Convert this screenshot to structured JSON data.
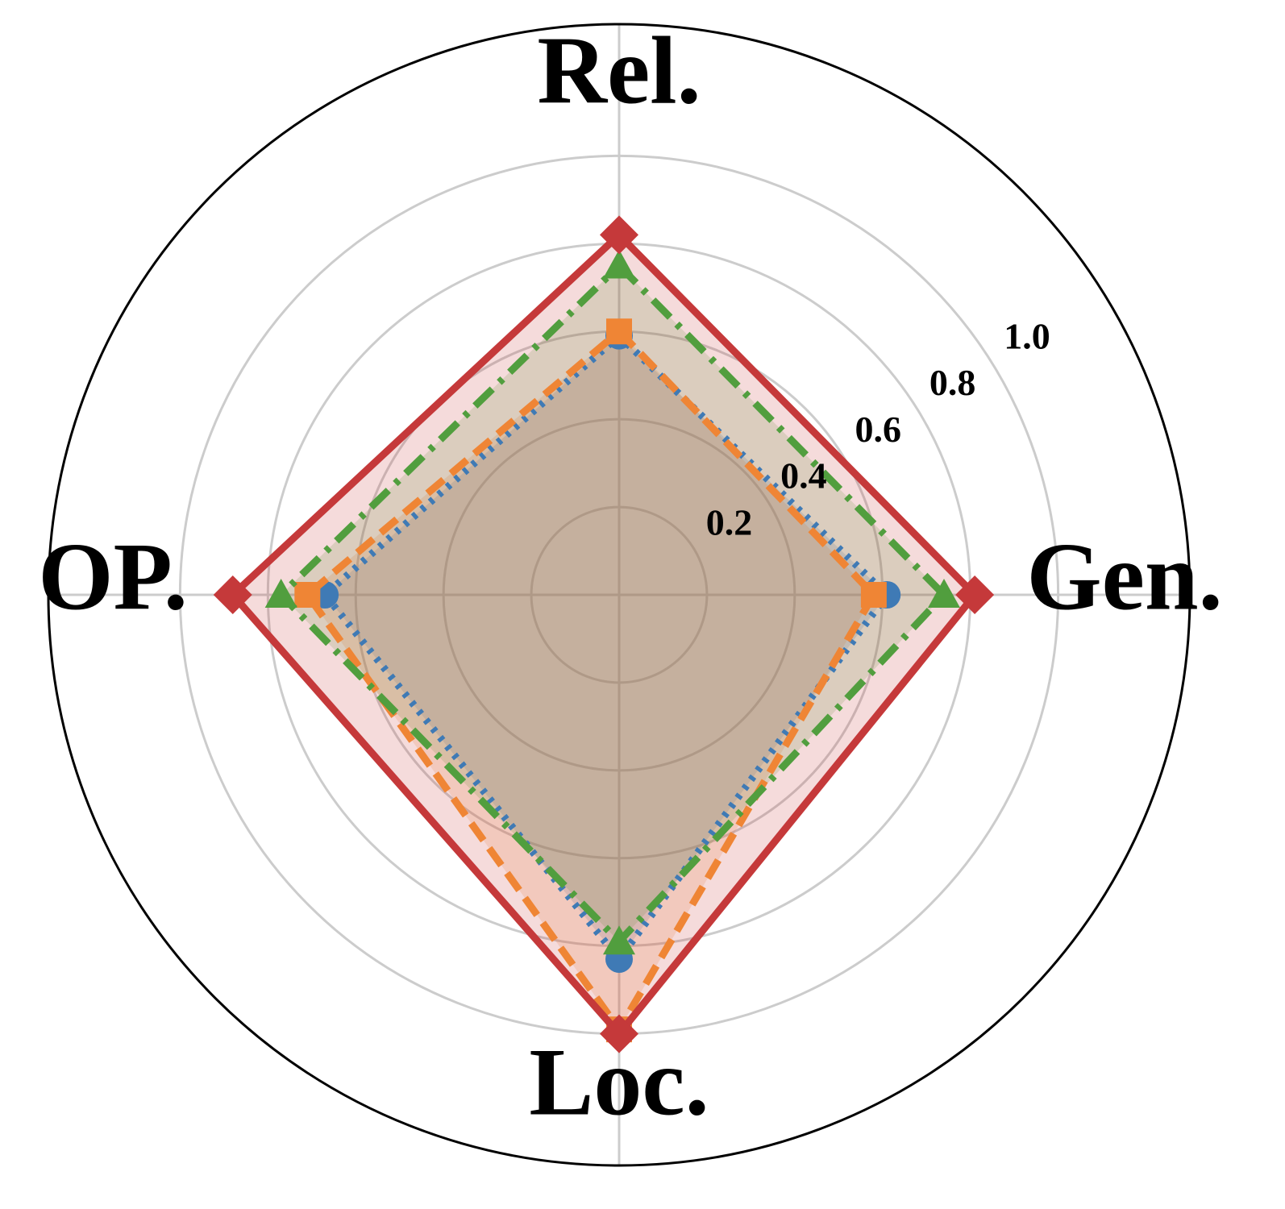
{
  "chart_data": {
    "type": "radar",
    "categories": [
      "Rel.",
      "Gen.",
      "Loc.",
      "OP."
    ],
    "series": [
      {
        "color": "#3f7ab5",
        "marker": "circle",
        "linestyle": "dotted",
        "values": [
          0.59,
          0.61,
          0.83,
          0.67
        ]
      },
      {
        "color": "#ef8535",
        "marker": "square",
        "linestyle": "dashed",
        "values": [
          0.6,
          0.58,
          0.99,
          0.71
        ]
      },
      {
        "color": "#519e3e",
        "marker": "triangle",
        "linestyle": "dashdot",
        "values": [
          0.75,
          0.74,
          0.79,
          0.77
        ]
      },
      {
        "color": "#c5393a",
        "marker": "diamond",
        "linestyle": "solid",
        "values": [
          0.82,
          0.81,
          1.0,
          0.88
        ]
      }
    ],
    "ylim": [
      0,
      1.3
    ],
    "yticks": [
      0.2,
      0.4,
      0.6,
      0.8,
      {
        "value": 1,
        "label": "1.0"
      }
    ],
    "grid": true
  }
}
